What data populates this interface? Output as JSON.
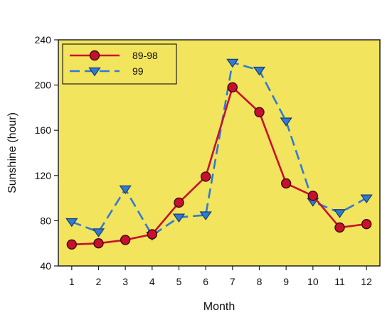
{
  "chart_data": {
    "type": "line",
    "xlabel": "Month",
    "ylabel": "Sunshine (hour)",
    "x": [
      1,
      2,
      3,
      4,
      5,
      6,
      7,
      8,
      9,
      10,
      11,
      12
    ],
    "xlim": [
      0.5,
      12.5
    ],
    "ylim": [
      40,
      240
    ],
    "yticks": [
      40,
      80,
      120,
      160,
      200,
      240
    ],
    "grid": false,
    "legend_position": "top-left",
    "background_color": "#F2E45C",
    "series": [
      {
        "name": "89-98",
        "marker": "circle",
        "line_style": "solid",
        "color": "#C8102E",
        "values": [
          59,
          60,
          63,
          68,
          96,
          119,
          198,
          176,
          113,
          102,
          74,
          77
        ]
      },
      {
        "name": "99",
        "marker": "triangle-down",
        "line_style": "dashed",
        "color": "#2E7BD6",
        "values": [
          79,
          70,
          108,
          67,
          83,
          85,
          220,
          213,
          168,
          97,
          87,
          100
        ]
      }
    ]
  }
}
